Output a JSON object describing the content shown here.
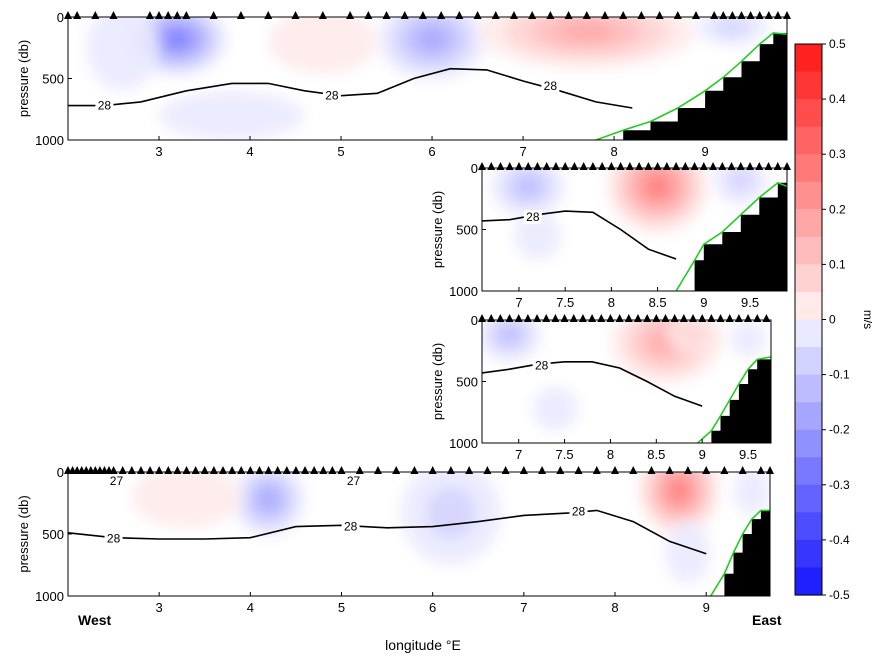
{
  "colors": {
    "positive": "#ff2020",
    "negative": "#2020ff",
    "isopycnal": "#000000",
    "bottom_line": "#22cc22",
    "land": "#000000"
  },
  "chart_data": {
    "type": "heatmap",
    "xlabel": "longitude °E",
    "west_label": "West",
    "east_label": "East",
    "colorbar": {
      "unit": "m/s",
      "range": [
        -0.5,
        0.5
      ],
      "step": 0.05,
      "ticks": [
        "0.5",
        "0.4",
        "0.3",
        "0.2",
        "0.1",
        "0",
        "-0.1",
        "-0.2",
        "-0.3",
        "-0.4",
        "-0.5"
      ]
    },
    "panels": [
      {
        "id": "section-1",
        "ylabel": "pressure (db)",
        "ylim": [
          1000,
          0
        ],
        "xlim": [
          2.0,
          9.9
        ],
        "yticks": [
          "0",
          "500",
          "1000"
        ],
        "xticks": [
          "3",
          "4",
          "5",
          "6",
          "7",
          "8",
          "9"
        ],
        "contours": [
          {
            "label": "28",
            "x": [
              2.0,
              2.4,
              2.8,
              3.3,
              3.8,
              4.2,
              4.6,
              5.0,
              5.4,
              5.8,
              6.2,
              6.6,
              7.0,
              7.4,
              7.8,
              8.2
            ],
            "y": [
              720,
              720,
              690,
              600,
              540,
              540,
              600,
              640,
              620,
              500,
              420,
              430,
              520,
              600,
              690,
              740
            ]
          }
        ],
        "contour_labels": [
          {
            "text": "28",
            "x": 2.4,
            "y": 720
          },
          {
            "text": "28",
            "x": 4.9,
            "y": 640
          },
          {
            "text": "28",
            "x": 7.3,
            "y": 560
          }
        ],
        "bottom": {
          "x": [
            7.8,
            8.1,
            8.4,
            8.7,
            9.0,
            9.2,
            9.4,
            9.6,
            9.75,
            9.9
          ],
          "y": [
            1000,
            920,
            850,
            740,
            600,
            490,
            360,
            220,
            130,
            140
          ]
        },
        "blobs": [
          {
            "x": 3.2,
            "y": 180,
            "rx": 0.55,
            "ry": 300,
            "v": -0.28
          },
          {
            "x": 2.6,
            "y": 250,
            "rx": 0.4,
            "ry": 350,
            "v": -0.05
          },
          {
            "x": 6.0,
            "y": 180,
            "rx": 0.6,
            "ry": 330,
            "v": -0.22
          },
          {
            "x": 7.7,
            "y": 120,
            "rx": 1.2,
            "ry": 300,
            "v": 0.22
          },
          {
            "x": 4.8,
            "y": 200,
            "rx": 0.6,
            "ry": 260,
            "v": 0.07
          },
          {
            "x": 9.3,
            "y": 80,
            "rx": 0.4,
            "ry": 150,
            "v": -0.1
          },
          {
            "x": 3.8,
            "y": 800,
            "rx": 0.8,
            "ry": 200,
            "v": -0.04
          }
        ],
        "stations": [
          2.0,
          2.1,
          2.3,
          2.5,
          2.9,
          3.0,
          3.1,
          3.2,
          3.3,
          3.6,
          3.9,
          4.2,
          4.5,
          4.8,
          5.1,
          5.3,
          5.5,
          5.7,
          5.9,
          6.1,
          6.3,
          6.5,
          6.7,
          6.9,
          7.1,
          7.3,
          7.5,
          7.7,
          7.9,
          8.1,
          8.3,
          8.5,
          8.7,
          8.9,
          9.1,
          9.2,
          9.3,
          9.4,
          9.5,
          9.6,
          9.7,
          9.8,
          9.9
        ]
      },
      {
        "id": "section-2",
        "ylabel": "pressure (db)",
        "ylim": [
          1000,
          0
        ],
        "xlim": [
          6.6,
          9.9
        ],
        "yticks": [
          "0",
          "500",
          "1000"
        ],
        "xticks": [
          "7",
          "7.5",
          "8",
          "8.5",
          "9",
          "9.5"
        ],
        "contours": [
          {
            "label": "28",
            "x": [
              6.6,
              6.9,
              7.2,
              7.5,
              7.8,
              8.1,
              8.4,
              8.7
            ],
            "y": [
              430,
              420,
              380,
              350,
              360,
              500,
              660,
              740
            ]
          }
        ],
        "contour_labels": [
          {
            "text": "28",
            "x": 7.15,
            "y": 400
          }
        ],
        "bottom": {
          "x": [
            8.7,
            8.9,
            9.0,
            9.2,
            9.4,
            9.6,
            9.8,
            9.9
          ],
          "y": [
            1000,
            750,
            620,
            520,
            380,
            240,
            120,
            150
          ]
        },
        "blobs": [
          {
            "x": 7.1,
            "y": 150,
            "rx": 0.4,
            "ry": 250,
            "v": -0.15
          },
          {
            "x": 7.2,
            "y": 550,
            "rx": 0.25,
            "ry": 200,
            "v": -0.04
          },
          {
            "x": 8.5,
            "y": 150,
            "rx": 0.55,
            "ry": 380,
            "v": 0.3
          },
          {
            "x": 9.4,
            "y": 100,
            "rx": 0.3,
            "ry": 200,
            "v": -0.08
          }
        ],
        "stations": [
          6.6,
          6.7,
          6.8,
          6.9,
          7.0,
          7.1,
          7.2,
          7.3,
          7.4,
          7.5,
          7.6,
          7.7,
          7.8,
          7.9,
          8.0,
          8.1,
          8.2,
          8.3,
          8.4,
          8.5,
          8.6,
          8.7,
          8.8,
          8.9,
          9.0,
          9.1,
          9.2,
          9.3,
          9.4,
          9.5,
          9.6,
          9.7,
          9.8,
          9.9
        ]
      },
      {
        "id": "section-3",
        "ylabel": "pressure (db)",
        "ylim": [
          1000,
          0
        ],
        "xlim": [
          6.6,
          9.75
        ],
        "yticks": [
          "0",
          "500",
          "1000"
        ],
        "xticks": [
          "7",
          "7.5",
          "8",
          "8.5",
          "9",
          "9.5"
        ],
        "contours": [
          {
            "label": "28",
            "x": [
              6.6,
              6.9,
              7.2,
              7.5,
              7.8,
              8.1,
              8.4,
              8.7,
              9.0
            ],
            "y": [
              430,
              400,
              360,
              340,
              340,
              390,
              500,
              620,
              700
            ]
          }
        ],
        "contour_labels": [
          {
            "text": "28",
            "x": 7.25,
            "y": 370
          }
        ],
        "bottom": {
          "x": [
            8.95,
            9.1,
            9.2,
            9.3,
            9.4,
            9.5,
            9.6,
            9.75
          ],
          "y": [
            1000,
            900,
            780,
            650,
            520,
            400,
            320,
            300
          ]
        },
        "blobs": [
          {
            "x": 6.9,
            "y": 120,
            "rx": 0.35,
            "ry": 220,
            "v": -0.14
          },
          {
            "x": 7.4,
            "y": 720,
            "rx": 0.25,
            "ry": 180,
            "v": -0.06
          },
          {
            "x": 8.6,
            "y": 180,
            "rx": 0.6,
            "ry": 340,
            "v": 0.22
          },
          {
            "x": 8.9,
            "y": 120,
            "rx": 0.3,
            "ry": 160,
            "v": 0.12
          },
          {
            "x": 9.5,
            "y": 150,
            "rx": 0.2,
            "ry": 150,
            "v": -0.07
          }
        ],
        "stations": [
          6.6,
          6.7,
          6.8,
          6.9,
          7.0,
          7.1,
          7.2,
          7.3,
          7.4,
          7.5,
          7.6,
          7.7,
          7.8,
          7.9,
          8.0,
          8.1,
          8.2,
          8.3,
          8.4,
          8.5,
          8.6,
          8.7,
          8.8,
          8.9,
          9.0,
          9.1,
          9.2,
          9.3,
          9.4,
          9.5,
          9.6,
          9.7
        ]
      },
      {
        "id": "section-4",
        "ylabel": "pressure (db)",
        "ylim": [
          1000,
          0
        ],
        "xlim": [
          2.0,
          9.7
        ],
        "yticks": [
          "0",
          "500",
          "1000"
        ],
        "xticks": [
          "3",
          "4",
          "5",
          "6",
          "7",
          "8",
          "9"
        ],
        "contours": [
          {
            "label": "28",
            "x": [
              2.0,
              2.5,
              3.0,
              3.5,
              4.0,
              4.5,
              5.0,
              5.5,
              6.0,
              6.5,
              7.0,
              7.5,
              7.8,
              8.2,
              8.6,
              9.0
            ],
            "y": [
              490,
              530,
              540,
              540,
              530,
              440,
              430,
              450,
              440,
              400,
              350,
              330,
              310,
              400,
              560,
              660
            ]
          }
        ],
        "contour_labels": [
          {
            "text": "28",
            "x": 2.5,
            "y": 535
          },
          {
            "text": "28",
            "x": 5.1,
            "y": 440
          },
          {
            "text": "28",
            "x": 7.6,
            "y": 320
          }
        ],
        "contour_labels_27": [
          {
            "text": "27",
            "x": 2.4,
            "y": 10
          },
          {
            "text": "27",
            "x": 5.0,
            "y": 10
          }
        ],
        "bottom": {
          "x": [
            9.05,
            9.2,
            9.3,
            9.4,
            9.5,
            9.6,
            9.7
          ],
          "y": [
            1000,
            820,
            650,
            500,
            380,
            310,
            310
          ]
        },
        "blobs": [
          {
            "x": 4.2,
            "y": 220,
            "rx": 0.4,
            "ry": 300,
            "v": -0.2
          },
          {
            "x": 6.2,
            "y": 330,
            "rx": 0.55,
            "ry": 420,
            "v": -0.08
          },
          {
            "x": 8.7,
            "y": 150,
            "rx": 0.45,
            "ry": 360,
            "v": 0.3
          },
          {
            "x": 3.3,
            "y": 200,
            "rx": 0.6,
            "ry": 250,
            "v": 0.04
          },
          {
            "x": 8.8,
            "y": 650,
            "rx": 0.25,
            "ry": 250,
            "v": -0.06
          },
          {
            "x": 9.5,
            "y": 150,
            "rx": 0.2,
            "ry": 200,
            "v": -0.05
          }
        ],
        "stations": [
          2.0,
          2.05,
          2.1,
          2.15,
          2.2,
          2.25,
          2.3,
          2.35,
          2.4,
          2.45,
          2.5,
          2.6,
          2.7,
          2.8,
          2.9,
          3.0,
          3.1,
          3.2,
          3.3,
          3.4,
          3.5,
          3.6,
          3.7,
          3.8,
          3.9,
          4.0,
          4.1,
          4.2,
          4.3,
          4.4,
          4.5,
          4.6,
          4.7,
          4.8,
          4.9,
          5.0,
          5.2,
          5.4,
          5.6,
          5.8,
          6.0,
          6.2,
          6.4,
          6.6,
          6.8,
          7.0,
          7.2,
          7.4,
          7.6,
          7.8,
          8.0,
          8.2,
          8.4,
          8.6,
          8.8,
          9.0,
          9.2,
          9.4,
          9.6,
          9.7
        ]
      }
    ]
  }
}
